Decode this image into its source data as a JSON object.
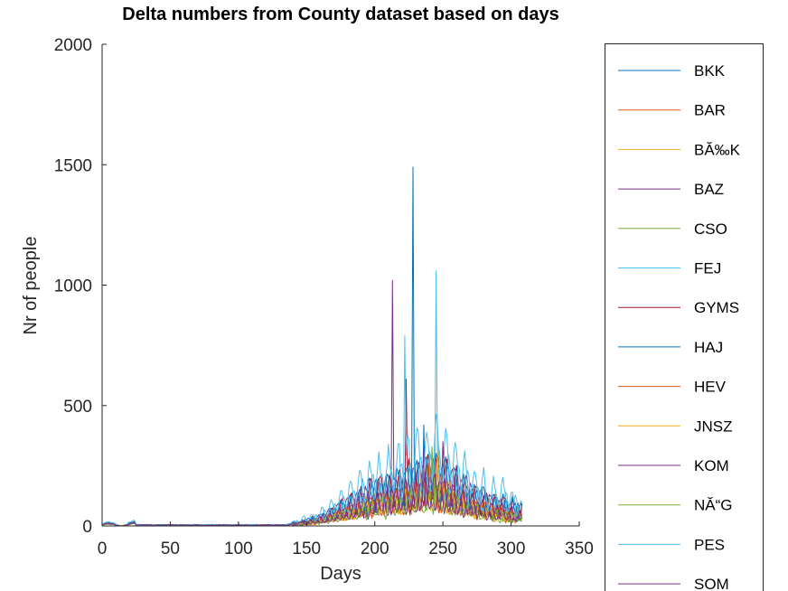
{
  "chart_data": {
    "type": "line",
    "title": "Delta numbers from County dataset based on days",
    "xlabel": "Days",
    "ylabel": "Nr of people",
    "xlim": [
      0,
      350
    ],
    "ylim": [
      0,
      2000
    ],
    "xticks": [
      0,
      50,
      100,
      150,
      200,
      250,
      300,
      350
    ],
    "yticks": [
      0,
      500,
      1000,
      1500,
      2000
    ],
    "grid": false,
    "legend_position": "right",
    "series": [
      {
        "name": "BKK",
        "color": "#0072BD",
        "scale": 1.0,
        "peak_day": 236,
        "peak_value": 420
      },
      {
        "name": "BAR",
        "color": "#D95319",
        "scale": 0.75,
        "peak_day": 240,
        "peak_value": 300
      },
      {
        "name": "BĂ‰K",
        "color": "#EDB120",
        "scale": 0.7,
        "peak_day": 238,
        "peak_value": 290
      },
      {
        "name": "BAZ",
        "color": "#7E2F8E",
        "scale": 1.05,
        "peak_day": 213,
        "peak_value": 1020
      },
      {
        "name": "CSO",
        "color": "#77AC30",
        "scale": 0.8,
        "peak_day": 242,
        "peak_value": 330
      },
      {
        "name": "FEJ",
        "color": "#4DBEEE",
        "scale": 1.2,
        "peak_day": 245,
        "peak_value": 1060
      },
      {
        "name": "GYMS",
        "color": "#A2142F",
        "scale": 1.1,
        "peak_day": 223,
        "peak_value": 610
      },
      {
        "name": "HAJ",
        "color": "#0072BD",
        "scale": 1.1,
        "peak_day": 228,
        "peak_value": 1490
      },
      {
        "name": "HEV",
        "color": "#D95319",
        "scale": 0.7,
        "peak_day": 240,
        "peak_value": 290
      },
      {
        "name": "JNSZ",
        "color": "#EDB120",
        "scale": 0.75,
        "peak_day": 246,
        "peak_value": 310
      },
      {
        "name": "KOM",
        "color": "#7E2F8E",
        "scale": 0.75,
        "peak_day": 236,
        "peak_value": 320
      },
      {
        "name": "NĂ“G",
        "color": "#77AC30",
        "scale": 0.6,
        "peak_day": 244,
        "peak_value": 250
      },
      {
        "name": "PES",
        "color": "#4DBEEE",
        "scale": 1.6,
        "peak_day": 222,
        "peak_value": 790
      },
      {
        "name": "SOM",
        "color": "#7E2F8E",
        "scale": 0.8,
        "peak_day": 250,
        "peak_value": 350
      }
    ]
  }
}
